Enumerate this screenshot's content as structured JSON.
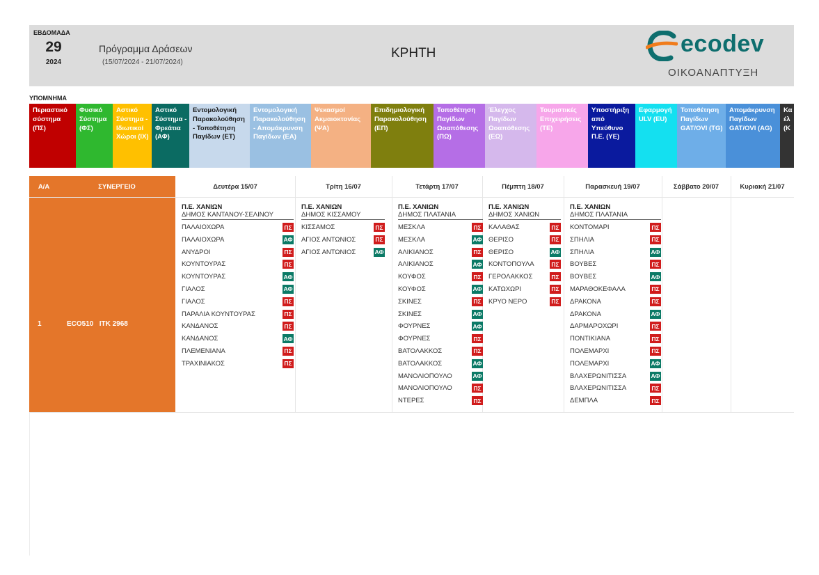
{
  "header": {
    "week_label": "ΕΒΔΟΜΑΔΑ",
    "week_number": "29",
    "year": "2024",
    "program_title": "Πρόγραμμα Δράσεων",
    "date_range": "(15/07/2024 - 21/07/2024)",
    "region": "ΚΡΗΤΗ",
    "logo_text": "ecodev",
    "logo_subtitle": "ΟΙΚΟΑΝΑΠΤΥΞΗ"
  },
  "legend": {
    "title": "ΥΠΟΜΝΗΜΑ",
    "items": [
      {
        "label": "Περιαστικό σύστημα (ΠΣ)",
        "bg": "#c00000",
        "fg": "#ffffff"
      },
      {
        "label": "Φυσικό Σύστημα (ΦΣ)",
        "bg": "#2fb82f",
        "fg": "#ffffff"
      },
      {
        "label": "Αστικό Σύστημα - Ιδιωτικοί Χώροι (ΙΧ)",
        "bg": "#ffc000",
        "fg": "#ffffff"
      },
      {
        "label": "Αστικό Σύστημα - Φρεάτια (ΑΦ)",
        "bg": "#0b6b62",
        "fg": "#ffffff"
      },
      {
        "label": "Εντομολογική Παρακολούθηση - Τοποθέτηση Παγίδων (ΕΤ)",
        "bg": "#c7d9ec",
        "fg": "#1a1a1a"
      },
      {
        "label": "Εντομολογική Παρακολούθηση - Απομάκρυνση Παγίδων (ΕΑ)",
        "bg": "#9ac0e2",
        "fg": "#ffffff"
      },
      {
        "label": "Ψεκασμοί Ακμαιοκτονίας (ΨΑ)",
        "bg": "#f4b183",
        "fg": "#ffffff"
      },
      {
        "label": "Επιδημιολογική Παρακολούθηση (ΕΠ)",
        "bg": "#7f7f0e",
        "fg": "#ffffff"
      },
      {
        "label": "Τοποθέτηση Παγίδων Ωοαπόθεσης (ΠΩ)",
        "bg": "#b56ee6",
        "fg": "#ffffff"
      },
      {
        "label": "Έλεγχος Παγίδων Ωοαπόθεσης (ΕΩ)",
        "bg": "#d5b8ec",
        "fg": "#ffffff"
      },
      {
        "label": "Τουριστικές Επιχειρήσεις (ΤΕ)",
        "bg": "#f7a6ea",
        "fg": "#ffffff"
      },
      {
        "label": "Υποστήριξη από Υπεύθυνο Π.Ε. (ΥΕ)",
        "bg": "#0a1a9e",
        "fg": "#ffffff"
      },
      {
        "label": "Εφαρμογή ULV (EU)",
        "bg": "#14e0f0",
        "fg": "#ffffff"
      },
      {
        "label": "Τοποθέτηση Παγίδων GAT/OVI (TG)",
        "bg": "#6eaee8",
        "fg": "#ffffff"
      },
      {
        "label": "Απομάκρυνση Παγίδων GAT/OVI (AG)",
        "bg": "#4a90d9",
        "fg": "#ffffff"
      },
      {
        "label": "Κα έλ (Κ",
        "bg": "#333333",
        "fg": "#ffffff"
      }
    ]
  },
  "table": {
    "headers": {
      "aa": "Α/Α",
      "synergeio": "ΣΥΝΕΡΓΕΙΟ",
      "days": [
        "Δευτέρα 15/07",
        "Τρίτη 16/07",
        "Τετάρτη 17/07",
        "Πέμπτη 18/07",
        "Παρασκευή 19/07",
        "Σάββατο 20/07",
        "Κυριακή 21/07"
      ]
    },
    "row": {
      "aa": "1",
      "synergeio": "ECO510   ΙΤΚ 2968",
      "days": [
        {
          "pe": "Π.Ε. ΧΑΝΙΩΝ",
          "dimos": "ΔΗΜΟΣ ΚΑΝΤΑΝΟΥ-ΣΕΛΙΝΟΥ",
          "entries": [
            {
              "place": "ΠΑΛΑΙΟΧΩΡΑ",
              "code": "ΠΣ"
            },
            {
              "place": "ΠΑΛΑΙΟΧΩΡΑ",
              "code": "ΑΦ"
            },
            {
              "place": "ΑΝΥΔΡΟΙ",
              "code": "ΠΣ"
            },
            {
              "place": "ΚΟΥΝΤΟΥΡΑΣ",
              "code": "ΠΣ"
            },
            {
              "place": "ΚΟΥΝΤΟΥΡΑΣ",
              "code": "ΑΦ"
            },
            {
              "place": "ΓΙΑΛΟΣ",
              "code": "ΑΦ"
            },
            {
              "place": "ΓΙΑΛΟΣ",
              "code": "ΠΣ"
            },
            {
              "place": "ΠΑΡΑΛΙΑ ΚΟΥΝΤΟΥΡΑΣ",
              "code": "ΠΣ"
            },
            {
              "place": "ΚΑΝΔΑΝΟΣ",
              "code": "ΠΣ"
            },
            {
              "place": "ΚΑΝΔΑΝΟΣ",
              "code": "ΑΦ"
            },
            {
              "place": "ΠΛΕΜΕΝΙΑΝΑ",
              "code": "ΠΣ"
            },
            {
              "place": "ΤΡΑΧΙΝΙΑΚΟΣ",
              "code": "ΠΣ"
            }
          ]
        },
        {
          "pe": "Π.Ε. ΧΑΝΙΩΝ",
          "dimos": "ΔΗΜΟΣ ΚΙΣΣΑΜΟΥ",
          "entries": [
            {
              "place": "ΚΙΣΣΑΜΟΣ",
              "code": "ΠΣ"
            },
            {
              "place": "ΑΓΙΟΣ ΑΝΤΩΝΙΟΣ",
              "code": "ΠΣ"
            },
            {
              "place": "ΑΓΙΟΣ ΑΝΤΩΝΙΟΣ",
              "code": "ΑΦ"
            }
          ]
        },
        {
          "pe": "Π.Ε. ΧΑΝΙΩΝ",
          "dimos": "ΔΗΜΟΣ ΠΛΑΤΑΝΙΑ",
          "entries": [
            {
              "place": "ΜΕΣΚΛΑ",
              "code": "ΠΣ"
            },
            {
              "place": "ΜΕΣΚΛΑ",
              "code": "ΑΦ"
            },
            {
              "place": "ΑΛΙΚΙΑΝΟΣ",
              "code": "ΠΣ"
            },
            {
              "place": "ΑΛΙΚΙΑΝΟΣ",
              "code": "ΑΦ"
            },
            {
              "place": "ΚΟΥΦΟΣ",
              "code": "ΠΣ"
            },
            {
              "place": "ΚΟΥΦΟΣ",
              "code": "ΑΦ"
            },
            {
              "place": "ΣΚΙΝΕΣ",
              "code": "ΠΣ"
            },
            {
              "place": "ΣΚΙΝΕΣ",
              "code": "ΑΦ"
            },
            {
              "place": "ΦΟΥΡΝΕΣ",
              "code": "ΑΦ"
            },
            {
              "place": "ΦΟΥΡΝΕΣ",
              "code": "ΠΣ"
            },
            {
              "place": "ΒΑΤΟΛΑΚΚΟΣ",
              "code": "ΠΣ"
            },
            {
              "place": "ΒΑΤΟΛΑΚΚΟΣ",
              "code": "ΑΦ"
            },
            {
              "place": "ΜΑΝΟΛΙΟΠΟΥΛΟ",
              "code": "ΑΦ"
            },
            {
              "place": "ΜΑΝΟΛΙΟΠΟΥΛΟ",
              "code": "ΠΣ"
            },
            {
              "place": "ΝΤΕΡΕΣ",
              "code": "ΠΣ"
            }
          ]
        },
        {
          "pe": "Π.Ε. ΧΑΝΙΩΝ",
          "dimos": "ΔΗΜΟΣ ΧΑΝΙΩΝ",
          "entries": [
            {
              "place": "ΚΑΛΑΘΑΣ",
              "code": "ΠΣ"
            },
            {
              "place": "ΘΕΡΙΣΟ",
              "code": "ΠΣ"
            },
            {
              "place": "ΘΕΡΙΣΟ",
              "code": "ΑΦ"
            },
            {
              "place": "ΚΟΝΤΟΠΟΥΛΑ",
              "code": "ΠΣ"
            },
            {
              "place": "ΓΕΡΟΛΑΚΚΟΣ",
              "code": "ΠΣ"
            },
            {
              "place": "ΚΑΤΩΧΩΡΙ",
              "code": "ΠΣ"
            },
            {
              "place": "ΚΡΥΟ ΝΕΡΟ",
              "code": "ΠΣ"
            }
          ]
        },
        {
          "pe": "Π.Ε. ΧΑΝΙΩΝ",
          "dimos": "ΔΗΜΟΣ ΠΛΑΤΑΝΙΑ",
          "entries": [
            {
              "place": "ΚΟΝΤΟΜΑΡΙ",
              "code": "ΠΣ"
            },
            {
              "place": "ΣΠΗΛΙΑ",
              "code": "ΠΣ"
            },
            {
              "place": "ΣΠΗΛΙΑ",
              "code": "ΑΦ"
            },
            {
              "place": "ΒΟΥΒΕΣ",
              "code": "ΠΣ"
            },
            {
              "place": "ΒΟΥΒΕΣ",
              "code": "ΑΦ"
            },
            {
              "place": "ΜΑΡΑΘΟΚΕΦΑΛΑ",
              "code": "ΠΣ"
            },
            {
              "place": "ΔΡΑΚΟΝΑ",
              "code": "ΠΣ"
            },
            {
              "place": "ΔΡΑΚΟΝΑ",
              "code": "ΑΦ"
            },
            {
              "place": "ΔΑΡΜΑΡΟΧΩΡΙ",
              "code": "ΠΣ"
            },
            {
              "place": "ΠΟΝΤΙΚΙΑΝΑ",
              "code": "ΠΣ"
            },
            {
              "place": "ΠΟΛΕΜΑΡΧΙ",
              "code": "ΠΣ"
            },
            {
              "place": "ΠΟΛΕΜΑΡΧΙ",
              "code": "ΑΦ"
            },
            {
              "place": "ΒΛΑΧΕΡΩΝΙΤΙΣΣΑ",
              "code": "ΑΦ"
            },
            {
              "place": "ΒΛΑΧΕΡΩΝΙΤΙΣΣΑ",
              "code": "ΠΣ"
            },
            {
              "place": "ΔΕΜΠΛΑ",
              "code": "ΠΣ"
            }
          ]
        },
        null,
        null
      ]
    }
  }
}
